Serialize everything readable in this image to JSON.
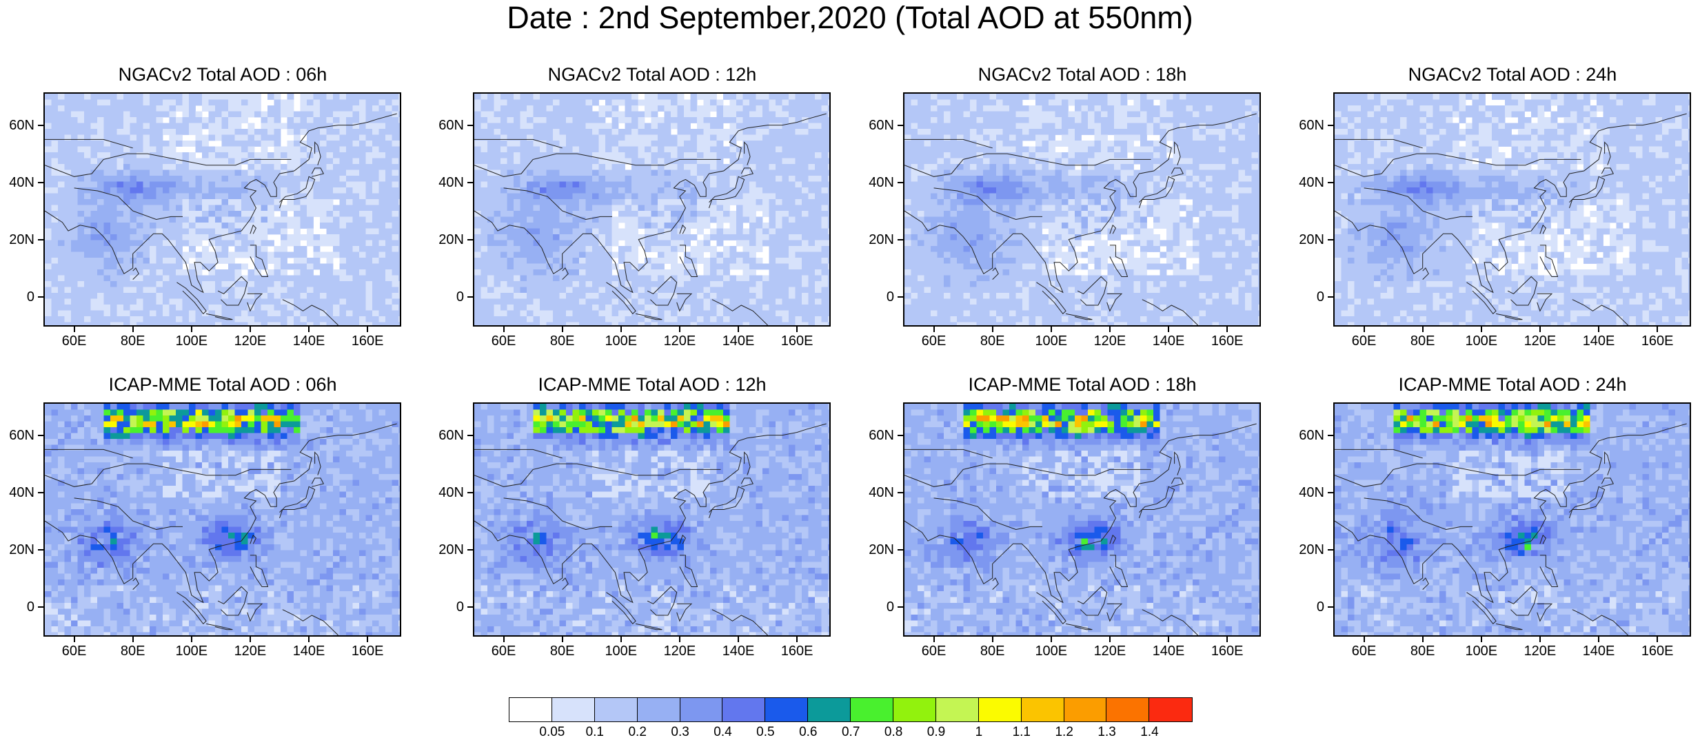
{
  "title": "Date : 2nd September,2020 (Total AOD at 550nm)",
  "lat_labels": [
    "60N",
    "40N",
    "20N",
    "0"
  ],
  "lon_labels": [
    "60E",
    "80E",
    "100E",
    "120E",
    "140E",
    "160E"
  ],
  "panels": [
    {
      "title": "NGACv2 Total AOD : 06h",
      "model": "ngac",
      "seed": 6
    },
    {
      "title": "NGACv2 Total AOD : 12h",
      "model": "ngac",
      "seed": 12
    },
    {
      "title": "NGACv2 Total AOD : 18h",
      "model": "ngac",
      "seed": 18
    },
    {
      "title": "NGACv2 Total AOD : 24h",
      "model": "ngac",
      "seed": 24
    },
    {
      "title": "ICAP-MME Total AOD : 06h",
      "model": "icap",
      "seed": 106
    },
    {
      "title": "ICAP-MME Total AOD : 12h",
      "model": "icap",
      "seed": 112
    },
    {
      "title": "ICAP-MME Total AOD : 18h",
      "model": "icap",
      "seed": 118
    },
    {
      "title": "ICAP-MME Total AOD : 24h",
      "model": "icap",
      "seed": 124
    }
  ],
  "colorbar": {
    "labels": [
      "0.05",
      "0.1",
      "0.2",
      "0.3",
      "0.4",
      "0.5",
      "0.6",
      "0.7",
      "0.8",
      "0.9",
      "1",
      "1.1",
      "1.2",
      "1.3",
      "1.4"
    ],
    "colors": [
      "#ffffff",
      "#d7e2fb",
      "#b4c7f7",
      "#97b0f3",
      "#7d97f0",
      "#6277ee",
      "#1a5aeb",
      "#0c9a9a",
      "#49f02e",
      "#92f20d",
      "#c4f553",
      "#fbfb00",
      "#fbc400",
      "#fb9d00",
      "#fb7300",
      "#fb2a10"
    ]
  }
}
